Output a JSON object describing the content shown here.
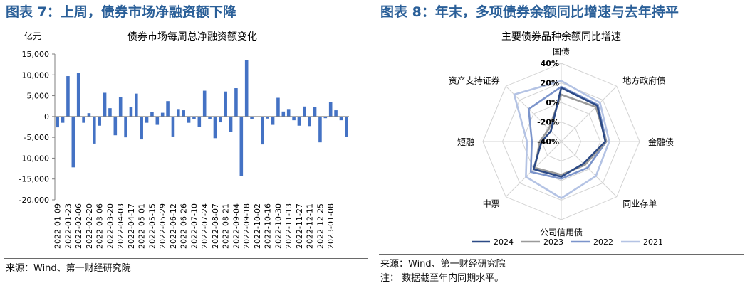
{
  "left": {
    "figure_title": "图表 7：上周，债券市场净融资额下降",
    "source": "来源：Wind、第一财经研究院"
  },
  "right": {
    "figure_title": "图表 8：年末，多项债券余额同比增速与去年持平",
    "source": "来源：Wind、第一财经研究院",
    "note": "注：  数据截至年内同期水平。"
  },
  "chart_data": [
    {
      "type": "bar",
      "title": "债券市场每周总净融资额变化",
      "ylabel": "亿元",
      "ylim": [
        -20000,
        15000
      ],
      "yticks": [
        -20000,
        -15000,
        -10000,
        -5000,
        0,
        5000,
        10000,
        15000
      ],
      "ytick_labels": [
        "-20,000",
        "-15,000",
        "-10,000",
        "-5,000",
        "0",
        "5,000",
        "10,000",
        "15,000"
      ],
      "x_tick_labels": [
        "2022-01-09",
        "2022-01-23",
        "2022-02-06",
        "2022-02-20",
        "2022-03-06",
        "2022-03-20",
        "2022-04-03",
        "2022-04-17",
        "2022-05-01",
        "2022-05-15",
        "2022-05-29",
        "2022-06-12",
        "2022-06-26",
        "2022-07-10",
        "2022-07-24",
        "2022-08-07",
        "2022-08-21",
        "2022-09-04",
        "2022-09-18",
        "2022-10-02",
        "2022-10-16",
        "2022-10-30",
        "2022-11-13",
        "2022-11-27",
        "2022-12-11",
        "2022-12-25",
        "2023-01-08"
      ],
      "color": "#4472c4",
      "values": [
        -2600,
        -1500,
        9700,
        -12200,
        10500,
        -1500,
        800,
        -6500,
        -2200,
        5700,
        2000,
        -4500,
        4600,
        -5000,
        2200,
        5500,
        -5500,
        -1500,
        1000,
        -2000,
        900,
        3700,
        -4800,
        1800,
        1500,
        -1500,
        -600,
        -2500,
        6200,
        -600,
        -5200,
        -1400,
        6000,
        -3700,
        6800,
        -14300,
        13600,
        -600,
        0,
        -6700,
        -500,
        -2000,
        4500,
        1200,
        1800,
        -900,
        -2200,
        2400,
        -2300,
        2200,
        -6200,
        -400,
        3400,
        1500,
        -900,
        -4900
      ]
    },
    {
      "type": "radar",
      "title": "主要债券品种余额同比增速",
      "categories": [
        "国债",
        "地方政府债",
        "金融债",
        "同业存单",
        "公司信用债",
        "中票",
        "短融",
        "资产支持证券"
      ],
      "rlim": [
        -40,
        40
      ],
      "rticks": [
        -40,
        -20,
        0,
        20,
        40
      ],
      "rtick_labels": [
        "-40%",
        "-20%",
        "0%",
        "20%",
        "40%"
      ],
      "series": [
        {
          "name": "2024",
          "color": "#2c4a86",
          "values": [
            15,
            12,
            5,
            -8,
            -4,
            0,
            -20,
            -25
          ]
        },
        {
          "name": "2023",
          "color": "#9a9a9a",
          "values": [
            8,
            10,
            6,
            -6,
            -6,
            -2,
            -18,
            -22
          ]
        },
        {
          "name": "2022",
          "color": "#7b94cb",
          "values": [
            16,
            13,
            6,
            -2,
            -2,
            4,
            -10,
            7
          ]
        },
        {
          "name": "2021",
          "color": "#b4c3e4",
          "values": [
            22,
            16,
            9,
            10,
            18,
            11,
            -5,
            28
          ]
        }
      ]
    }
  ]
}
